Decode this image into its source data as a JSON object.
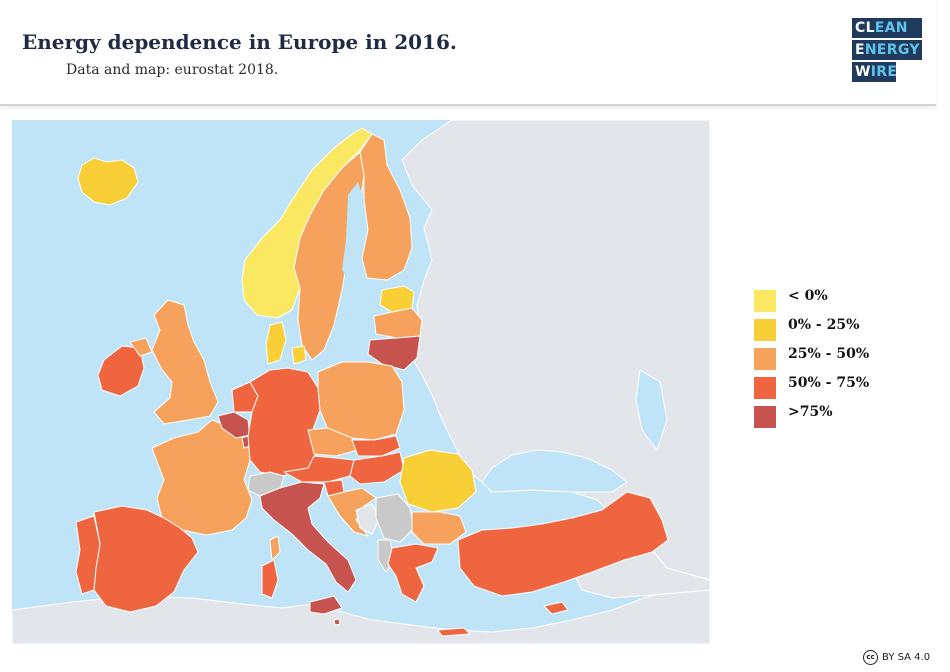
{
  "header": {
    "title": "Energy dependence in Europe in 2016.",
    "subtitle": "Data and map: eurostat 2018."
  },
  "logo": {
    "line1_a": "CL",
    "line1_b": "EAN",
    "line2_a": "E",
    "line2_b": "NERGY",
    "line3_a": "W",
    "line3_b": "IRE",
    "accent": "#5fc3ea",
    "background": "#1f3a5c"
  },
  "legend": {
    "items": [
      {
        "label": "< 0%",
        "color": "#fbe862"
      },
      {
        "label": "0% - 25%",
        "color": "#f8cf36"
      },
      {
        "label": "25% - 50%",
        "color": "#f6a15c"
      },
      {
        "label": "50% - 75%",
        "color": "#ef6540"
      },
      {
        "label": ">75%",
        "color": "#c7534e"
      }
    ]
  },
  "map_colors": {
    "sea": "#bfe3f7",
    "no_data_land": "#e2e6ea",
    "no_data_member": "#c9c9c9",
    "border": "#ffffff"
  },
  "footer": {
    "cc_symbol": "cc",
    "license": "BY SA 4.0"
  }
}
